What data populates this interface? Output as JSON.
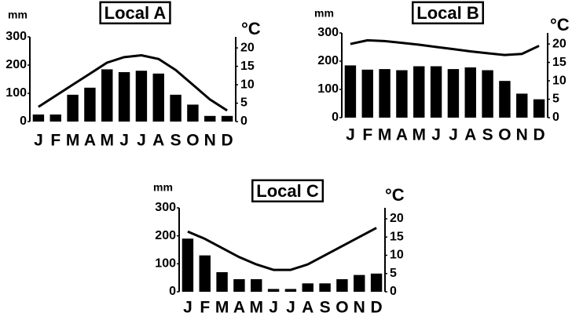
{
  "chart_data": [
    {
      "type": "bar",
      "title": "Local A",
      "ylabel": "mm",
      "y2label": "°C",
      "categories": [
        "J",
        "F",
        "M",
        "A",
        "M",
        "J",
        "J",
        "A",
        "S",
        "O",
        "N",
        "D"
      ],
      "series": [
        {
          "type": "bar",
          "color": "#000000",
          "values": [
            25,
            25,
            95,
            120,
            185,
            175,
            180,
            170,
            95,
            60,
            20,
            20
          ]
        },
        {
          "type": "line",
          "axis": "y2",
          "color": "#000000",
          "values": [
            4,
            7,
            10,
            13,
            16,
            17.5,
            18,
            17,
            14,
            10,
            6,
            3
          ]
        }
      ],
      "ylim": [
        0,
        300
      ],
      "yticks": [
        0,
        100,
        200,
        300
      ],
      "y2lim": [
        0,
        23
      ],
      "y2ticks": [
        0,
        5,
        10,
        15,
        20
      ]
    },
    {
      "type": "bar",
      "title": "Local B",
      "ylabel": "mm",
      "y2label": "°C",
      "categories": [
        "J",
        "F",
        "M",
        "A",
        "M",
        "J",
        "J",
        "A",
        "S",
        "O",
        "N",
        "D"
      ],
      "series": [
        {
          "type": "bar",
          "color": "#000000",
          "values": [
            185,
            170,
            172,
            168,
            182,
            182,
            172,
            178,
            168,
            130,
            85,
            65
          ]
        },
        {
          "type": "line",
          "axis": "y2",
          "color": "#000000",
          "values": [
            20,
            21,
            20.8,
            20.3,
            19.8,
            19.2,
            18.6,
            18,
            17.5,
            17,
            17.3,
            19.5
          ]
        }
      ],
      "ylim": [
        0,
        300
      ],
      "yticks": [
        0,
        100,
        200,
        300
      ],
      "y2lim": [
        0,
        23
      ],
      "y2ticks": [
        0,
        5,
        10,
        15,
        20
      ]
    },
    {
      "type": "bar",
      "title": "Local C",
      "ylabel": "mm",
      "y2label": "°C",
      "categories": [
        "J",
        "F",
        "M",
        "A",
        "M",
        "J",
        "J",
        "A",
        "S",
        "O",
        "N",
        "D"
      ],
      "series": [
        {
          "type": "bar",
          "color": "#000000",
          "values": [
            190,
            130,
            70,
            45,
            45,
            10,
            10,
            30,
            30,
            45,
            60,
            65
          ]
        },
        {
          "type": "line",
          "axis": "y2",
          "color": "#000000",
          "values": [
            16.5,
            14.5,
            12,
            9.5,
            7.5,
            6,
            6,
            7.5,
            10,
            12.5,
            15,
            17.5
          ]
        }
      ],
      "ylim": [
        0,
        300
      ],
      "yticks": [
        0,
        100,
        200,
        300
      ],
      "y2lim": [
        0,
        23
      ],
      "y2ticks": [
        0,
        5,
        10,
        15,
        20
      ]
    }
  ]
}
